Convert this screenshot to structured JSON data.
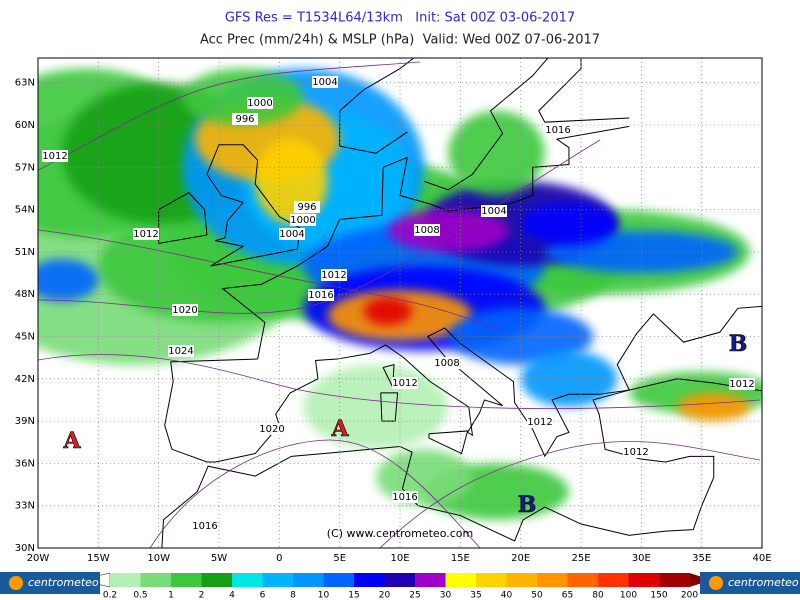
{
  "header": {
    "line1": "GFS Res = T1534L64/13km   Init: Sat 00Z 03-06-2017",
    "line2": "Acc Prec (mm/24h) & MSLP (hPa)  Valid: Wed 00Z 07-06-2017"
  },
  "map": {
    "lat_labels": [
      "30N",
      "33N",
      "36N",
      "39N",
      "42N",
      "45N",
      "48N",
      "51N",
      "54N",
      "57N",
      "60N",
      "63N"
    ],
    "lon_labels": [
      "20W",
      "15W",
      "10W",
      "5W",
      "0",
      "5E",
      "10E",
      "15E",
      "20E",
      "25E",
      "30E",
      "35E",
      "40E"
    ],
    "isobar_labels": [
      "1004",
      "1000",
      "996",
      "1016",
      "1012",
      "996",
      "1000",
      "1004",
      "1004",
      "1008",
      "1012",
      "1012",
      "1016",
      "1020",
      "1024",
      "1008",
      "1012",
      "1012",
      "1012",
      "1012",
      "1020",
      "1016",
      "1016"
    ],
    "pressure_centers": [
      "A",
      "A",
      "B",
      "B"
    ],
    "copyright": "(C) www.centrometeo.com"
  },
  "legend": {
    "labels": [
      "0.2",
      "0.5",
      "1",
      "2",
      "4",
      "6",
      "8",
      "10",
      "15",
      "20",
      "25",
      "30",
      "35",
      "40",
      "50",
      "65",
      "80",
      "100",
      "150",
      "200"
    ],
    "colors": [
      "#b4f0b4",
      "#78dc78",
      "#3cc83c",
      "#14a014",
      "#00e6e6",
      "#00b4ff",
      "#0096ff",
      "#0064ff",
      "#0000ff",
      "#1e00b4",
      "#a000c8",
      "#ffff00",
      "#ffd200",
      "#ffb400",
      "#ff9600",
      "#ff6400",
      "#ff3200",
      "#e10000",
      "#a00000"
    ]
  },
  "logo": "centrometeo"
}
